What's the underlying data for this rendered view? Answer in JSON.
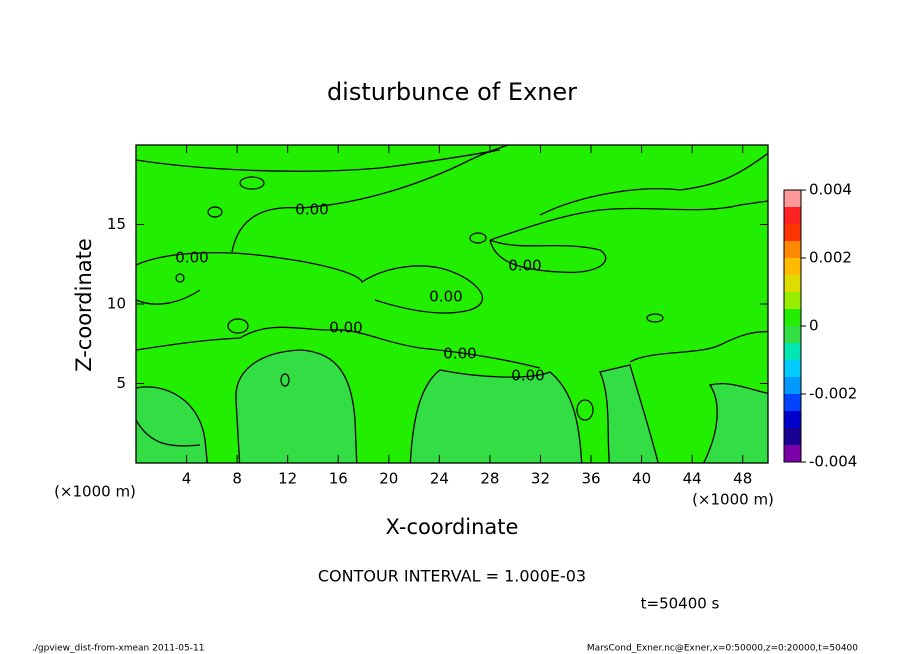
{
  "chart_data": {
    "type": "contour",
    "title": "disturbunce of Exner",
    "x_label": "X-coordinate",
    "y_label": "Z-coordinate",
    "x_unit": "(×1000 m)",
    "y_unit": "(×1000 m)",
    "xlim": [
      0,
      50
    ],
    "ylim": [
      0,
      20
    ],
    "xticks": [
      4,
      8,
      12,
      16,
      20,
      24,
      28,
      32,
      36,
      40,
      44,
      48
    ],
    "yticks": [
      5,
      10,
      15
    ],
    "contour_levels": [
      {
        "value": 0,
        "label": "0.00"
      }
    ],
    "colorbar": {
      "bounds": [
        -0.004,
        -0.0035,
        -0.003,
        -0.0025,
        -0.002,
        -0.0015,
        -0.001,
        -0.0005,
        0,
        0.0005,
        0.001,
        0.0015,
        0.002,
        0.0025,
        0.003,
        0.0035,
        0.004
      ],
      "colors": [
        "#7a00a8",
        "#1a0090",
        "#0000cc",
        "#0044ff",
        "#0099ff",
        "#00ccff",
        "#00e6b0",
        "#33dd44",
        "#22ee00",
        "#99ee00",
        "#dddd00",
        "#ffbb00",
        "#ff8800",
        "#ff3300",
        "#ff2222",
        "#ff9999"
      ],
      "ticks": [
        0.004,
        0.002,
        0,
        -0.002,
        -0.004
      ]
    },
    "contour_interval": "CONTOUR INTERVAL = 1.000E-03",
    "time_label": "t=50400 s",
    "footer_left": "./gpview_dist-from-xmean  2011-05-11",
    "footer_right": "MarsCond_Exner.nc@Exner,x=0:50000,z=0:20000,t=50400"
  }
}
